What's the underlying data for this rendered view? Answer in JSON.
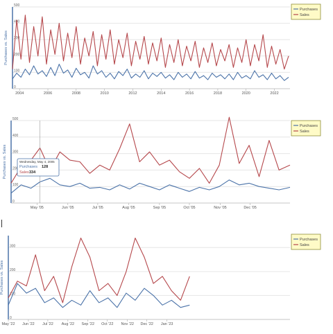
{
  "colors": {
    "purchases": "#4a72a8",
    "sales": "#b5474b",
    "legend_bg": "#fffbc7",
    "legend_border": "#8e8e3a",
    "grid": "#e6e6e6",
    "axis": "#4a72a8"
  },
  "legend_items": [
    "Purchases",
    "Sales"
  ],
  "tooltip": {
    "date": "Wednesday, May 4, 2005",
    "purchases_label": "Purchases",
    "purchases_value": "128",
    "sales_label": "Sales",
    "sales_value": "334"
  },
  "chart_data": [
    {
      "type": "line",
      "ylabel": "Purchases vs. Sales",
      "ylim": [
        0,
        500
      ],
      "yticks": [
        0,
        100,
        200,
        300,
        400,
        500
      ],
      "xlim": [
        2003.5,
        2023.1
      ],
      "xticks": [
        "2004",
        "2006",
        "2008",
        "2010",
        "2012",
        "2014",
        "2016",
        "2018",
        "2020",
        "2022"
      ],
      "xtick_values": [
        2004,
        2006,
        2008,
        2010,
        2012,
        2014,
        2016,
        2018,
        2020,
        2022
      ],
      "series": [
        {
          "name": "Purchases",
          "x": [
            2003.5,
            2003.8,
            2004.1,
            2004.4,
            2004.7,
            2005,
            2005.3,
            2005.6,
            2005.9,
            2006.2,
            2006.5,
            2006.8,
            2007.1,
            2007.4,
            2007.7,
            2008,
            2008.3,
            2008.6,
            2008.9,
            2009.2,
            2009.5,
            2009.8,
            2010.1,
            2010.4,
            2010.7,
            2011,
            2011.3,
            2011.6,
            2011.9,
            2012.2,
            2012.5,
            2012.8,
            2013.1,
            2013.4,
            2013.7,
            2014,
            2014.3,
            2014.6,
            2014.9,
            2015.2,
            2015.5,
            2015.8,
            2016.1,
            2016.4,
            2016.7,
            2017,
            2017.3,
            2017.6,
            2017.9,
            2018.2,
            2018.5,
            2018.8,
            2019.1,
            2019.4,
            2019.7,
            2020,
            2020.3,
            2020.6,
            2020.9,
            2021.2,
            2021.5,
            2021.8,
            2022.1,
            2022.4,
            2022.7,
            2023
          ],
          "y": [
            60,
            95,
            70,
            120,
            85,
            140,
            90,
            110,
            75,
            130,
            80,
            150,
            95,
            115,
            70,
            125,
            85,
            100,
            65,
            140,
            90,
            110,
            70,
            95,
            60,
            105,
            80,
            120,
            65,
            90,
            70,
            110,
            60,
            95,
            75,
            100,
            65,
            85,
            55,
            100,
            70,
            90,
            60,
            105,
            65,
            80,
            55,
            95,
            70,
            85,
            60,
            90,
            55,
            100,
            65,
            80,
            60,
            110,
            70,
            85,
            55,
            95,
            60,
            80,
            50,
            70
          ]
        },
        {
          "name": "Sales",
          "x": [
            2003.5,
            2003.8,
            2004.1,
            2004.4,
            2004.7,
            2005,
            2005.3,
            2005.6,
            2005.9,
            2006.2,
            2006.5,
            2006.8,
            2007.1,
            2007.4,
            2007.7,
            2008,
            2008.3,
            2008.6,
            2008.9,
            2009.2,
            2009.5,
            2009.8,
            2010.1,
            2010.4,
            2010.7,
            2011,
            2011.3,
            2011.6,
            2011.9,
            2012.2,
            2012.5,
            2012.8,
            2013.1,
            2013.4,
            2013.7,
            2014,
            2014.3,
            2014.6,
            2014.9,
            2015.2,
            2015.5,
            2015.8,
            2016.1,
            2016.4,
            2016.7,
            2017,
            2017.3,
            2017.6,
            2017.9,
            2018.2,
            2018.5,
            2018.8,
            2019.1,
            2019.4,
            2019.7,
            2020,
            2020.3,
            2020.6,
            2020.9,
            2021.2,
            2021.5,
            2021.8,
            2022.1,
            2022.4,
            2022.7,
            2023
          ],
          "y": [
            120,
            420,
            180,
            450,
            160,
            380,
            200,
            440,
            150,
            360,
            210,
            400,
            170,
            340,
            190,
            380,
            150,
            310,
            200,
            350,
            140,
            330,
            180,
            360,
            150,
            300,
            190,
            340,
            140,
            290,
            180,
            320,
            150,
            280,
            170,
            310,
            130,
            270,
            160,
            300,
            140,
            260,
            170,
            290,
            130,
            250,
            160,
            280,
            140,
            240,
            170,
            270,
            130,
            250,
            160,
            300,
            140,
            270,
            170,
            330,
            130,
            260,
            150,
            240,
            120,
            200
          ]
        }
      ]
    },
    {
      "type": "line",
      "ylabel": "Purchases vs. Sales",
      "ylim": [
        0,
        500
      ],
      "yticks": [
        0,
        100,
        200,
        300,
        400,
        500
      ],
      "xlim": [
        "2005-04-05",
        "2006-01-10"
      ],
      "xticks": [
        "May '05",
        "Jun '05",
        "Jul '05",
        "Aug '05",
        "Sep '05",
        "Oct '05",
        "Nov '05",
        "Dec '05"
      ],
      "xtick_values": [
        "2005-05-01",
        "2005-06-01",
        "2005-07-01",
        "2005-08-01",
        "2005-09-01",
        "2005-10-01",
        "2005-11-01",
        "2005-12-01"
      ],
      "series": [
        {
          "name": "Purchases",
          "x": [
            "2005-04-05",
            "2005-04-15",
            "2005-04-25",
            "2005-05-04",
            "2005-05-14",
            "2005-05-24",
            "2005-06-03",
            "2005-06-13",
            "2005-06-23",
            "2005-07-03",
            "2005-07-13",
            "2005-07-23",
            "2005-08-02",
            "2005-08-12",
            "2005-08-22",
            "2005-09-01",
            "2005-09-11",
            "2005-09-21",
            "2005-10-01",
            "2005-10-11",
            "2005-10-21",
            "2005-10-31",
            "2005-11-10",
            "2005-11-20",
            "2005-11-30",
            "2005-12-10",
            "2005-12-20",
            "2005-12-30",
            "2006-01-10"
          ],
          "y": [
            60,
            110,
            90,
            128,
            150,
            110,
            100,
            120,
            90,
            95,
            80,
            110,
            85,
            120,
            100,
            80,
            110,
            90,
            70,
            95,
            80,
            100,
            140,
            110,
            120,
            100,
            90,
            80,
            95
          ]
        },
        {
          "name": "Sales",
          "x": [
            "2005-04-05",
            "2005-04-15",
            "2005-04-25",
            "2005-05-04",
            "2005-05-14",
            "2005-05-24",
            "2005-06-03",
            "2005-06-13",
            "2005-06-23",
            "2005-07-03",
            "2005-07-13",
            "2005-07-23",
            "2005-08-02",
            "2005-08-12",
            "2005-08-22",
            "2005-09-01",
            "2005-09-11",
            "2005-09-21",
            "2005-10-01",
            "2005-10-11",
            "2005-10-21",
            "2005-10-31",
            "2005-11-10",
            "2005-11-20",
            "2005-11-30",
            "2005-12-10",
            "2005-12-20",
            "2005-12-30",
            "2006-01-10"
          ],
          "y": [
            120,
            220,
            260,
            334,
            200,
            310,
            260,
            250,
            180,
            230,
            200,
            330,
            480,
            250,
            310,
            230,
            260,
            190,
            150,
            210,
            120,
            230,
            520,
            240,
            350,
            160,
            380,
            200,
            230
          ]
        }
      ]
    },
    {
      "type": "line",
      "ylabel": "Purchases vs. Sales",
      "ylim": [
        0,
        350
      ],
      "yticks": [
        0,
        100,
        200,
        300
      ],
      "xlim": [
        "2022-05-01",
        "2023-07-10"
      ],
      "xticks": [
        "May '22",
        "Jun '22",
        "Jul '22",
        "Aug '22",
        "Sep '22",
        "Oct '22",
        "Nov '22",
        "Dec '22",
        "Jan '23"
      ],
      "xtick_values": [
        "2022-05-01",
        "2022-06-01",
        "2022-07-01",
        "2022-08-01",
        "2022-09-01",
        "2022-10-01",
        "2022-11-01",
        "2022-12-01",
        "2023-01-01"
      ],
      "series": [
        {
          "name": "Purchases",
          "x": [
            "2022-05-01",
            "2022-05-15",
            "2022-05-29",
            "2022-06-12",
            "2022-06-26",
            "2022-07-10",
            "2022-07-24",
            "2022-08-07",
            "2022-08-21",
            "2022-09-04",
            "2022-09-18",
            "2022-10-02",
            "2022-10-16",
            "2022-10-30",
            "2022-11-13",
            "2022-11-27",
            "2022-12-11",
            "2022-12-25",
            "2023-01-08",
            "2023-01-22",
            "2023-02-05"
          ],
          "y": [
            60,
            150,
            110,
            130,
            70,
            90,
            50,
            80,
            60,
            120,
            70,
            90,
            50,
            110,
            80,
            130,
            100,
            60,
            80,
            50,
            60
          ]
        },
        {
          "name": "Sales",
          "x": [
            "2022-05-01",
            "2022-05-15",
            "2022-05-29",
            "2022-06-12",
            "2022-06-26",
            "2022-07-10",
            "2022-07-24",
            "2022-08-07",
            "2022-08-21",
            "2022-09-04",
            "2022-09-18",
            "2022-10-02",
            "2022-10-16",
            "2022-10-30",
            "2022-11-13",
            "2022-11-27",
            "2022-12-11",
            "2022-12-25",
            "2023-01-08",
            "2023-01-22",
            "2023-02-05"
          ],
          "y": [
            90,
            160,
            140,
            270,
            120,
            180,
            70,
            220,
            340,
            260,
            120,
            150,
            100,
            200,
            340,
            260,
            150,
            180,
            120,
            80,
            180
          ]
        }
      ]
    }
  ]
}
